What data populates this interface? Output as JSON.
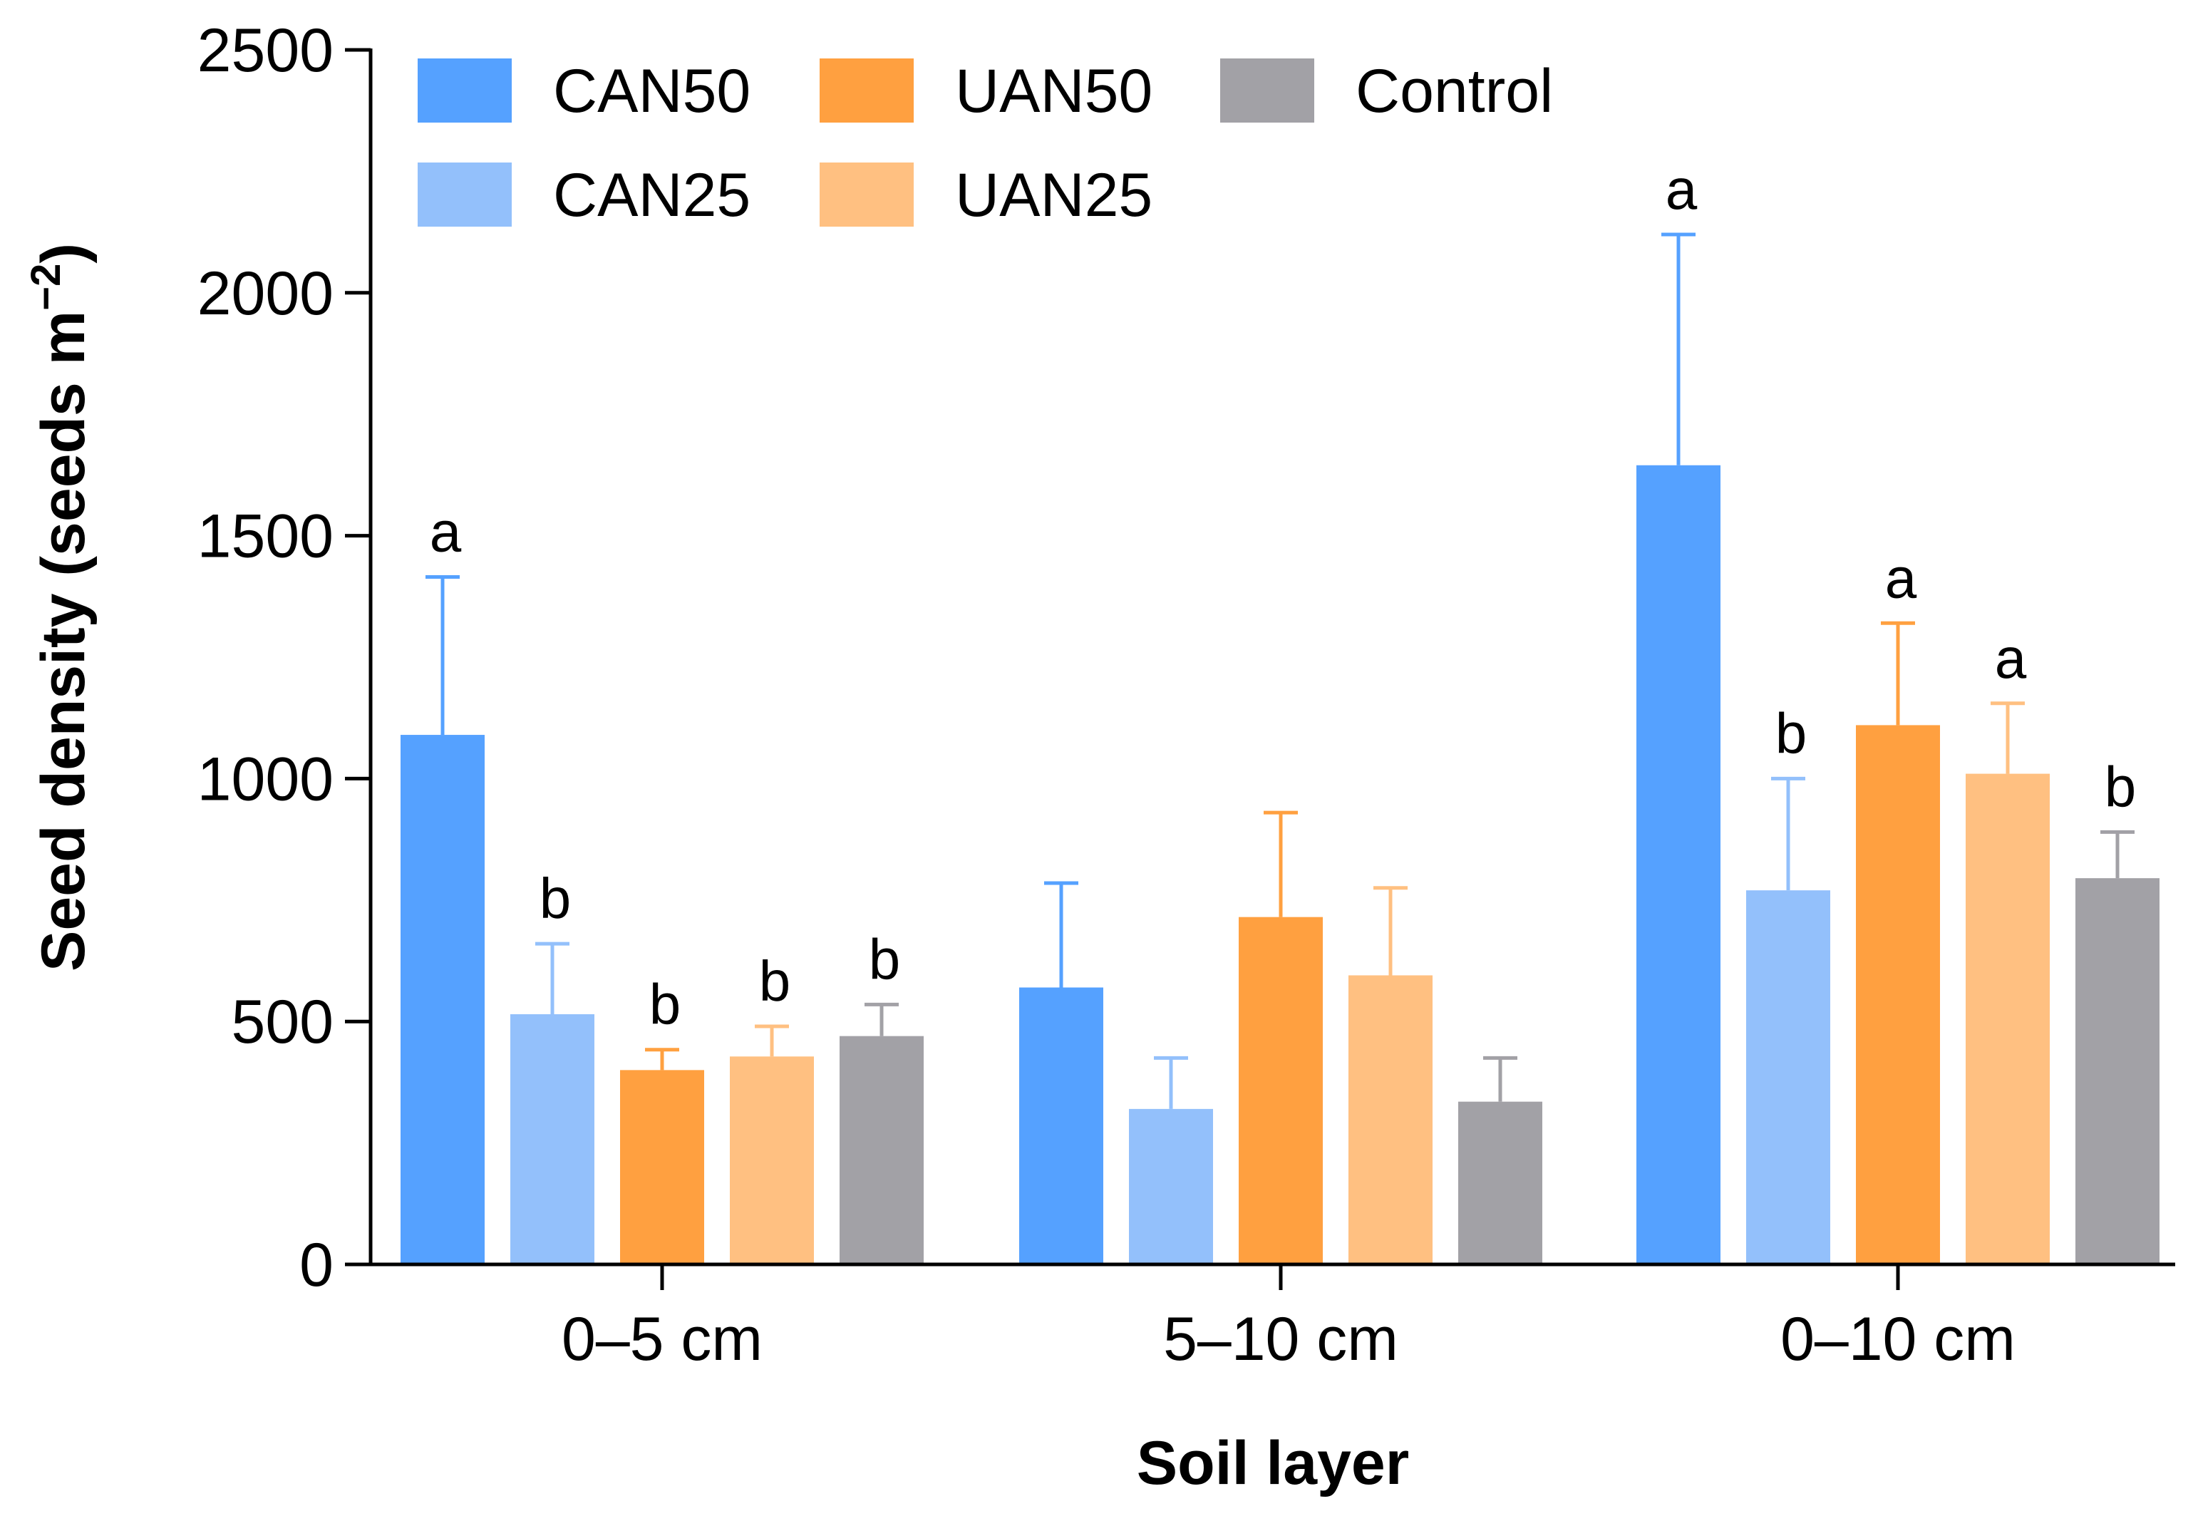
{
  "chart_data": {
    "type": "bar",
    "title": "",
    "xlabel": "Soil layer",
    "ylabel": "Seed density (seeds m",
    "ylabel_superscript": "−2",
    "ylabel_close": ")",
    "ylim": [
      0,
      2500
    ],
    "yticks": [
      "0",
      "500",
      "1000",
      "1500",
      "2000",
      "2500"
    ],
    "grid": false,
    "legend_position": "top-left",
    "categories": [
      "0–5 cm",
      "5–10 cm",
      "0–10 cm"
    ],
    "series": [
      {
        "name": "CAN50",
        "color": "#55a1ff",
        "values": [
          1090,
          570,
          1645
        ],
        "errors": [
          325,
          215,
          475
        ],
        "labels": [
          "a",
          "",
          "a"
        ]
      },
      {
        "name": "CAN25",
        "color": "#93c0fb",
        "values": [
          515,
          320,
          770
        ],
        "errors": [
          145,
          105,
          230
        ],
        "labels": [
          "b",
          "",
          "b"
        ]
      },
      {
        "name": "UAN50",
        "color": "#ffa040",
        "values": [
          400,
          715,
          1110
        ],
        "errors": [
          42,
          215,
          210
        ],
        "labels": [
          "b",
          "",
          "a"
        ]
      },
      {
        "name": "UAN25",
        "color": "#ffc081",
        "values": [
          428,
          595,
          1010
        ],
        "errors": [
          62,
          180,
          145
        ],
        "labels": [
          "b",
          "",
          "a"
        ]
      },
      {
        "name": "Control",
        "color": "#a2a1a6",
        "values": [
          470,
          335,
          795
        ],
        "errors": [
          65,
          90,
          95
        ],
        "labels": [
          "b",
          "",
          "b"
        ]
      }
    ],
    "legend_order": [
      0,
      2,
      4,
      1,
      3
    ]
  }
}
